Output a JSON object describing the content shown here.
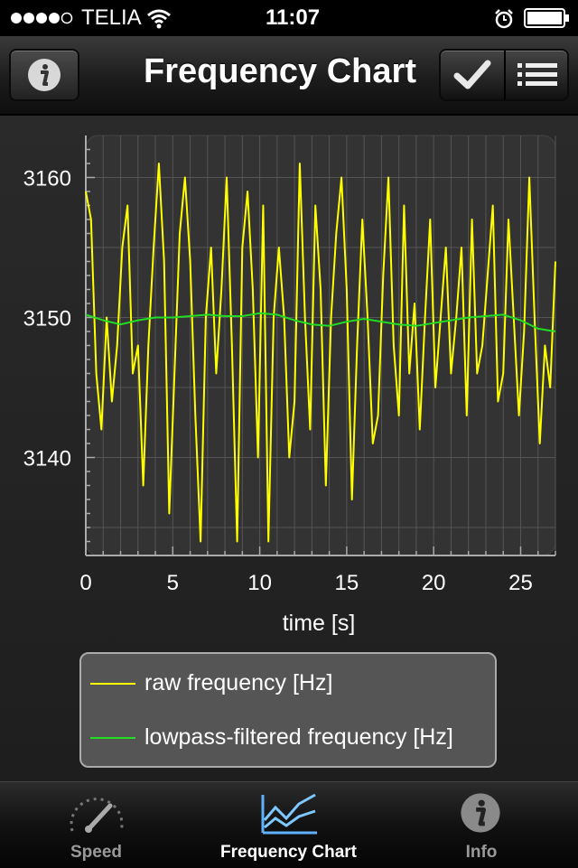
{
  "status": {
    "carrier": "TELIA",
    "time": "11:07",
    "signal_icon": "signal-dots-icon",
    "wifi_icon": "wifi-icon",
    "alarm_icon": "alarm-icon",
    "battery_icon": "battery-icon"
  },
  "nav": {
    "title": "Frequency Chart",
    "info_icon": "info-icon",
    "check_icon": "checkmark-icon",
    "list_icon": "list-icon"
  },
  "chart_data": {
    "type": "line",
    "xlabel": "time [s]",
    "ylabel": "",
    "xlim": [
      0,
      27
    ],
    "ylim": [
      3133,
      3163
    ],
    "xticks": [
      0,
      5,
      10,
      15,
      20,
      25
    ],
    "yticks": [
      3140,
      3150,
      3160
    ],
    "grid": true,
    "legend_placement": "bottom",
    "series": [
      {
        "name": "raw frequency [Hz]",
        "color": "#ffff00",
        "x": [
          0,
          0.3,
          0.6,
          0.9,
          1.2,
          1.5,
          1.8,
          2.1,
          2.4,
          2.7,
          3.0,
          3.3,
          3.6,
          3.9,
          4.2,
          4.5,
          4.8,
          5.1,
          5.4,
          5.7,
          6.0,
          6.3,
          6.6,
          6.9,
          7.2,
          7.5,
          7.8,
          8.1,
          8.4,
          8.7,
          9.0,
          9.3,
          9.6,
          9.9,
          10.2,
          10.5,
          10.8,
          11.1,
          11.4,
          11.7,
          12.0,
          12.3,
          12.6,
          12.9,
          13.2,
          13.5,
          13.8,
          14.1,
          14.4,
          14.7,
          15.0,
          15.3,
          15.6,
          15.9,
          16.2,
          16.5,
          16.8,
          17.1,
          17.4,
          17.7,
          18.0,
          18.3,
          18.6,
          18.9,
          19.2,
          19.5,
          19.8,
          20.1,
          20.4,
          20.7,
          21.0,
          21.3,
          21.6,
          21.9,
          22.2,
          22.5,
          22.8,
          23.1,
          23.4,
          23.7,
          24.0,
          24.3,
          24.6,
          24.9,
          25.2,
          25.5,
          25.8,
          26.1,
          26.4,
          26.7,
          27.0
        ],
        "values": [
          3159,
          3157,
          3146,
          3142,
          3150,
          3144,
          3148,
          3155,
          3158,
          3146,
          3148,
          3138,
          3148,
          3155,
          3161,
          3154,
          3136,
          3146,
          3156,
          3160,
          3154,
          3143,
          3134,
          3150,
          3155,
          3146,
          3152,
          3160,
          3148,
          3134,
          3155,
          3159,
          3152,
          3140,
          3158,
          3134,
          3150,
          3155,
          3150,
          3140,
          3144,
          3161,
          3150,
          3142,
          3158,
          3152,
          3138,
          3150,
          3156,
          3160,
          3152,
          3137,
          3148,
          3157,
          3150,
          3141,
          3143,
          3153,
          3160,
          3148,
          3143,
          3158,
          3146,
          3151,
          3142,
          3150,
          3157,
          3145,
          3150,
          3155,
          3146,
          3150,
          3155,
          3143,
          3157,
          3146,
          3148,
          3153,
          3158,
          3144,
          3146,
          3157,
          3150,
          3143,
          3149,
          3160,
          3150,
          3141,
          3148,
          3145,
          3154
        ]
      },
      {
        "name": "lowpass-filtered frequency [Hz]",
        "color": "#22dd22",
        "x": [
          0,
          1,
          2,
          3,
          4,
          5,
          6,
          7,
          8,
          9,
          10,
          11,
          12,
          13,
          14,
          15,
          16,
          17,
          18,
          19,
          20,
          21,
          22,
          23,
          24,
          25,
          26,
          27
        ],
        "values": [
          3150.2,
          3149.8,
          3149.5,
          3149.8,
          3150.0,
          3150.0,
          3150.1,
          3150.2,
          3150.1,
          3150.1,
          3150.3,
          3150.2,
          3149.8,
          3149.5,
          3149.4,
          3149.7,
          3149.9,
          3149.7,
          3149.5,
          3149.4,
          3149.6,
          3149.8,
          3150.0,
          3150.1,
          3150.2,
          3149.8,
          3149.2,
          3149.0
        ]
      }
    ]
  },
  "legend": {
    "items": [
      {
        "label": "raw frequency [Hz]",
        "color": "#ffff00"
      },
      {
        "label": "lowpass-filtered frequency [Hz]",
        "color": "#22dd22"
      }
    ]
  },
  "tabs": [
    {
      "label": "Speed",
      "icon": "speedometer-icon",
      "active": false
    },
    {
      "label": "Frequency Chart",
      "icon": "chart-icon",
      "active": true
    },
    {
      "label": "Info",
      "icon": "info-icon",
      "active": false
    }
  ]
}
